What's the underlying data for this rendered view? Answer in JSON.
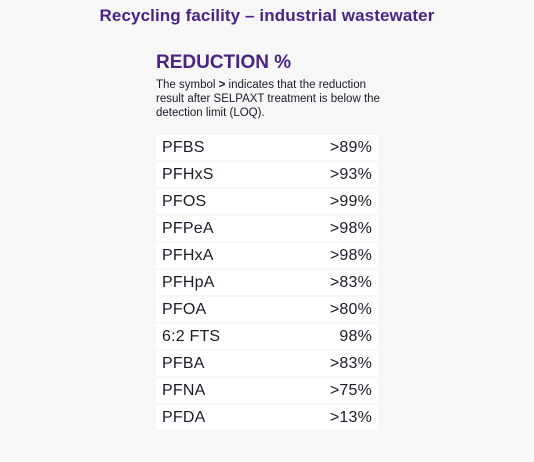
{
  "header": {
    "title": "Recycling facility – industrial wastewater"
  },
  "section": {
    "heading": "REDUCTION %",
    "note_prefix": "The symbol ",
    "note_symbol": ">",
    "note_suffix": " indicates that the reduction result after SELPAXT treatment is below the detection limit (LOQ)."
  },
  "table": {
    "rows": [
      {
        "name": "PFBS",
        "value": ">89%"
      },
      {
        "name": "PFHxS",
        "value": ">93%"
      },
      {
        "name": "PFOS",
        "value": ">99%"
      },
      {
        "name": "PFPeA",
        "value": ">98%"
      },
      {
        "name": "PFHxA",
        "value": ">98%"
      },
      {
        "name": "PFHpA",
        "value": ">83%"
      },
      {
        "name": "PFOA",
        "value": ">80%"
      },
      {
        "name": "6:2 FTS",
        "value": "98%"
      },
      {
        "name": "PFBA",
        "value": ">83%"
      },
      {
        "name": "PFNA",
        "value": ">75%"
      },
      {
        "name": "PFDA",
        "value": ">13%"
      }
    ]
  },
  "colors": {
    "accent": "#4b2385",
    "background": "#f6f7f6",
    "row_background": "#ffffff",
    "text": "#1b1b2a"
  }
}
